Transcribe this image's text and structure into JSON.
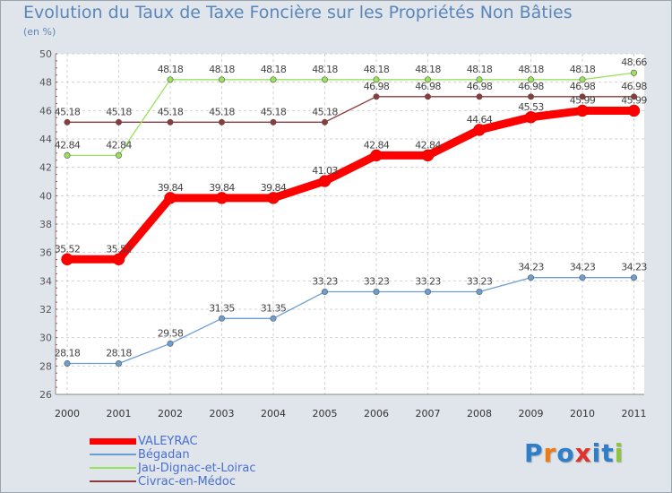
{
  "chart_data": {
    "type": "line",
    "title": "Evolution du Taux de Taxe Foncière sur les Propriétés Non Bâties",
    "ylabel": "(en %)",
    "xlabel": "",
    "categories": [
      "2000",
      "2001",
      "2002",
      "2003",
      "2004",
      "2005",
      "2006",
      "2007",
      "2008",
      "2009",
      "2010",
      "2011"
    ],
    "ylim": [
      26,
      50
    ],
    "yticks": [
      26,
      28,
      30,
      32,
      34,
      36,
      38,
      40,
      42,
      44,
      46,
      48,
      50
    ],
    "grid": true,
    "series": [
      {
        "name": "VALEYRAC",
        "color": "#ff0000",
        "values": [
          35.52,
          35.52,
          39.84,
          39.84,
          39.84,
          41.03,
          42.84,
          42.84,
          44.64,
          45.53,
          45.99,
          45.99
        ],
        "labels": [
          "35.52",
          "35.52",
          "39.84",
          "39.84",
          "39.84",
          "41.03",
          "42.84",
          "42.84",
          "44.64",
          "45.53",
          "45.99",
          "45.99"
        ]
      },
      {
        "name": "Bégadan",
        "color": "#6c9fd1",
        "values": [
          28.18,
          28.18,
          29.58,
          31.35,
          31.35,
          33.23,
          33.23,
          33.23,
          33.23,
          34.23,
          34.23,
          34.23
        ],
        "labels": [
          "28.18",
          "28.18",
          "29.58",
          "31.35",
          "31.35",
          "33.23",
          "33.23",
          "33.23",
          "33.23",
          "34.23",
          "34.23",
          "34.23"
        ]
      },
      {
        "name": "Jau-Dignac-et-Loirac",
        "color": "#99e25a",
        "values": [
          42.84,
          42.84,
          48.18,
          48.18,
          48.18,
          48.18,
          48.18,
          48.18,
          48.18,
          48.18,
          48.18,
          48.66
        ],
        "labels": [
          "42.84",
          "42.84",
          "48.18",
          "48.18",
          "48.18",
          "48.18",
          "48.18",
          "48.18",
          "48.18",
          "48.18",
          "48.18",
          "48.66"
        ]
      },
      {
        "name": "Civrac-en-Médoc",
        "color": "#8c3a3a",
        "values": [
          45.18,
          45.18,
          45.18,
          45.18,
          45.18,
          45.18,
          46.98,
          46.98,
          46.98,
          46.98,
          46.98,
          46.98
        ],
        "labels": [
          "45.18",
          "45.18",
          "45.18",
          "45.18",
          "45.18",
          "45.18",
          "46.98",
          "46.98",
          "46.98",
          "46.98",
          "46.98",
          "46.98"
        ]
      }
    ]
  },
  "legend": {
    "items": [
      "VALEYRAC",
      "Bégadan",
      "Jau-Dignac-et-Loirac",
      "Civrac-en-Médoc"
    ]
  },
  "logo": {
    "letters": [
      "P",
      "r",
      "o",
      "x",
      "i",
      "t",
      "i"
    ],
    "colors": [
      "#2f7ec9",
      "#f07a12",
      "#2f7ec9",
      "#e0322b",
      "#2f7ec9",
      "#2f7ec9",
      "#8cc63f"
    ]
  }
}
